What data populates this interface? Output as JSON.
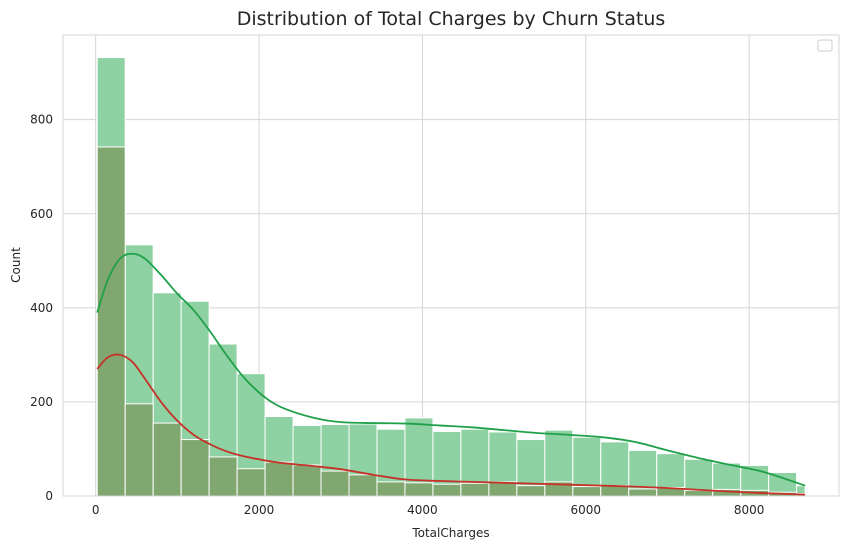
{
  "chart_data": {
    "type": "bar",
    "title": "Distribution of Total Charges by Churn Status",
    "xlabel": "TotalCharges",
    "ylabel": "Count",
    "xlim": [
      -400,
      9100
    ],
    "ylim": [
      0,
      980
    ],
    "xticks": [
      0,
      2000,
      4000,
      6000,
      8000
    ],
    "yticks": [
      0,
      200,
      400,
      600,
      800
    ],
    "grid": true,
    "legend": "top-right",
    "colors": {
      "no_churn_fill": "#8ed1a2",
      "no_churn_line": "#1fa049",
      "churn_fill": "#7fa46e",
      "churn_line": "#c6312a",
      "grid": "#d5d5d5",
      "text": "#262626"
    },
    "bin_edges": [
      18.8,
      361.3,
      703.8,
      1046.3,
      1388.8,
      1731.3,
      2073.8,
      2416.3,
      2758.8,
      3101.3,
      3443.8,
      3786.3,
      4128.8,
      4471.3,
      4813.8,
      5156.3,
      5498.8,
      5841.3,
      6183.8,
      6526.3,
      6868.8,
      7211.3,
      7553.8,
      7896.3,
      8238.8,
      8581.3,
      8684.8
    ],
    "series": [
      {
        "key": "no_churn",
        "values": [
          932,
          534,
          432,
          414,
          323,
          260,
          169,
          150,
          152,
          153,
          142,
          166,
          137,
          142,
          136,
          120,
          140,
          125,
          115,
          97,
          90,
          78,
          70,
          65,
          50,
          22
        ]
      },
      {
        "key": "churn",
        "values": [
          742,
          196,
          155,
          120,
          83,
          58,
          72,
          66,
          53,
          45,
          30,
          28,
          25,
          27,
          30,
          22,
          30,
          20,
          22,
          15,
          18,
          12,
          14,
          12,
          8,
          5
        ]
      }
    ],
    "kde": [
      {
        "key": "no_churn",
        "x": [
          18.8,
          150,
          300,
          450,
          600,
          800,
          1000,
          1200,
          1400,
          1600,
          1800,
          2000,
          2200,
          2400,
          2700,
          3000,
          3400,
          3800,
          4200,
          4600,
          5000,
          5400,
          5800,
          6200,
          6600,
          7000,
          7400,
          7800,
          8200,
          8684.8
        ],
        "y": [
          390,
          460,
          505,
          515,
          505,
          470,
          430,
          395,
          350,
          300,
          255,
          220,
          195,
          180,
          165,
          157,
          155,
          154,
          150,
          146,
          140,
          134,
          130,
          125,
          115,
          97,
          80,
          65,
          50,
          22
        ]
      },
      {
        "key": "churn",
        "x": [
          18.8,
          150,
          300,
          450,
          600,
          800,
          1000,
          1200,
          1400,
          1600,
          1800,
          2000,
          2200,
          2400,
          2700,
          3000,
          3400,
          3800,
          4200,
          4600,
          5000,
          5400,
          5800,
          6200,
          6600,
          7000,
          7400,
          7800,
          8200,
          8684.8
        ],
        "y": [
          270,
          295,
          300,
          285,
          250,
          200,
          160,
          130,
          110,
          95,
          85,
          78,
          72,
          68,
          63,
          57,
          45,
          35,
          32,
          30,
          28,
          26,
          24,
          22,
          20,
          17,
          13,
          9,
          6,
          3
        ]
      }
    ]
  }
}
